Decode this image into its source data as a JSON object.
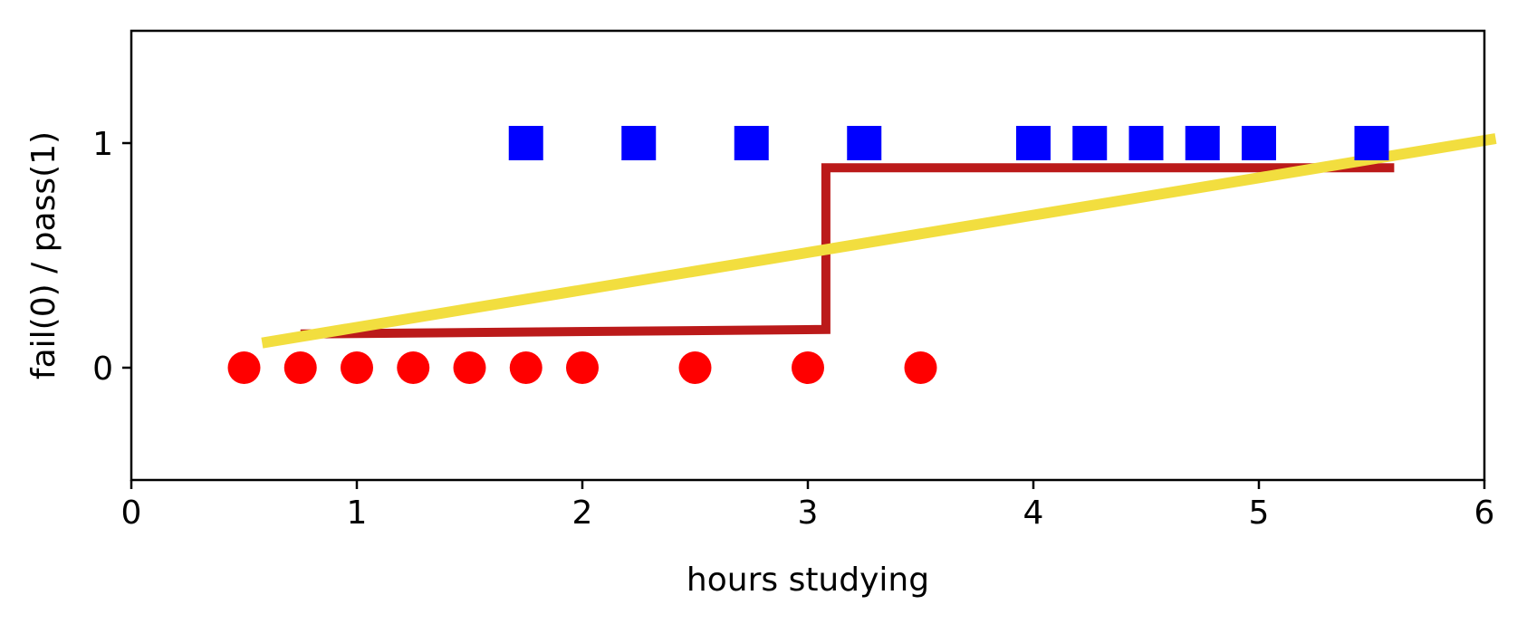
{
  "chart_data": {
    "type": "scatter",
    "xlabel": "hours studying",
    "ylabel": "fail(0) / pass(1)",
    "xlim": [
      0,
      6
    ],
    "ylim": [
      -0.5,
      1.5
    ],
    "x_ticks": [
      "0",
      "1",
      "2",
      "3",
      "4",
      "5",
      "6"
    ],
    "y_ticks": [
      "0",
      "1"
    ],
    "grid": false,
    "legend": "none",
    "series": [
      {
        "kind": "scatter",
        "marker": "circle",
        "color": "#ff0000",
        "x": [
          0.5,
          0.75,
          1.0,
          1.25,
          1.5,
          1.75,
          2.0,
          2.5,
          3.0,
          3.5
        ],
        "y": [
          0,
          0,
          0,
          0,
          0,
          0,
          0,
          0,
          0,
          0
        ]
      },
      {
        "kind": "scatter",
        "marker": "square",
        "color": "#0000ff",
        "x": [
          1.75,
          2.25,
          2.75,
          3.25,
          4.0,
          4.25,
          4.5,
          4.75,
          5.0,
          5.5
        ],
        "y": [
          1,
          1,
          1,
          1,
          1,
          1,
          1,
          1,
          1,
          1
        ]
      },
      {
        "kind": "step-line",
        "color": "#bb1a1a",
        "x": [
          0.75,
          3.08,
          3.08,
          5.6
        ],
        "y": [
          0.15,
          0.17,
          0.89,
          0.89
        ]
      },
      {
        "kind": "line",
        "color": "#f2de3f",
        "x": [
          0.58,
          6.05
        ],
        "y": [
          0.11,
          1.02
        ]
      }
    ]
  }
}
